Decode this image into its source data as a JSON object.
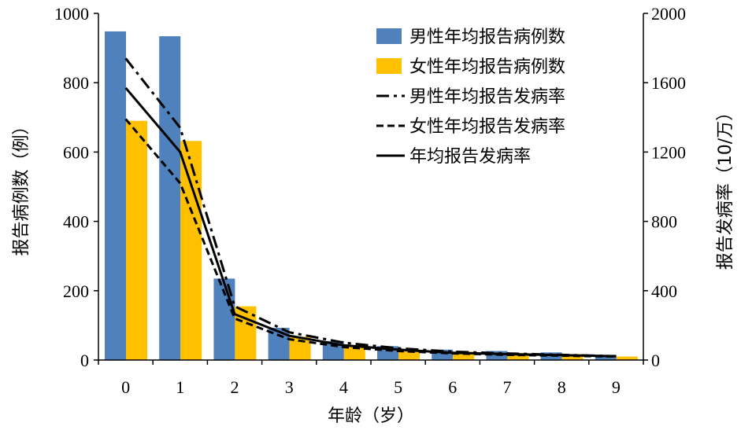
{
  "chart_data": {
    "type": "bar+line",
    "categories": [
      "0",
      "1",
      "2",
      "3",
      "4",
      "5",
      "6",
      "7",
      "8",
      "9"
    ],
    "xlabel": "年龄（岁）",
    "ylabel_left": "报告病例数（例）",
    "ylabel_right": "报告发病率（10/万）",
    "ylim_left": [
      0,
      1000
    ],
    "ylim_right": [
      0,
      2000
    ],
    "yticks_left": [
      "0",
      "200",
      "400",
      "600",
      "800",
      "1000"
    ],
    "yticks_right": [
      "0",
      "400",
      "800",
      "1200",
      "1600",
      "2000"
    ],
    "legend_position": "top-right",
    "bar_series": [
      {
        "name": "男性年均报告病例数",
        "color": "#4F81BD",
        "axis": "left",
        "values": [
          948,
          934,
          235,
          93,
          55,
          40,
          30,
          26,
          22,
          15
        ]
      },
      {
        "name": "女性年均报告病例数",
        "color": "#FFC000",
        "axis": "left",
        "values": [
          690,
          632,
          155,
          67,
          42,
          30,
          24,
          20,
          17,
          10
        ]
      }
    ],
    "line_series": [
      {
        "name": "男性年均报告发病率",
        "style": "dash-dot",
        "axis": "right",
        "values": [
          1740,
          1340,
          310,
          160,
          100,
          68,
          48,
          38,
          30,
          22
        ]
      },
      {
        "name": "女性年均报告发病率",
        "style": "dashed",
        "axis": "right",
        "values": [
          1390,
          1020,
          240,
          120,
          75,
          52,
          38,
          30,
          25,
          20
        ]
      },
      {
        "name": "年均报告发病率",
        "style": "solid",
        "axis": "right",
        "values": [
          1570,
          1200,
          265,
          140,
          85,
          60,
          42,
          34,
          28,
          22
        ]
      }
    ]
  }
}
